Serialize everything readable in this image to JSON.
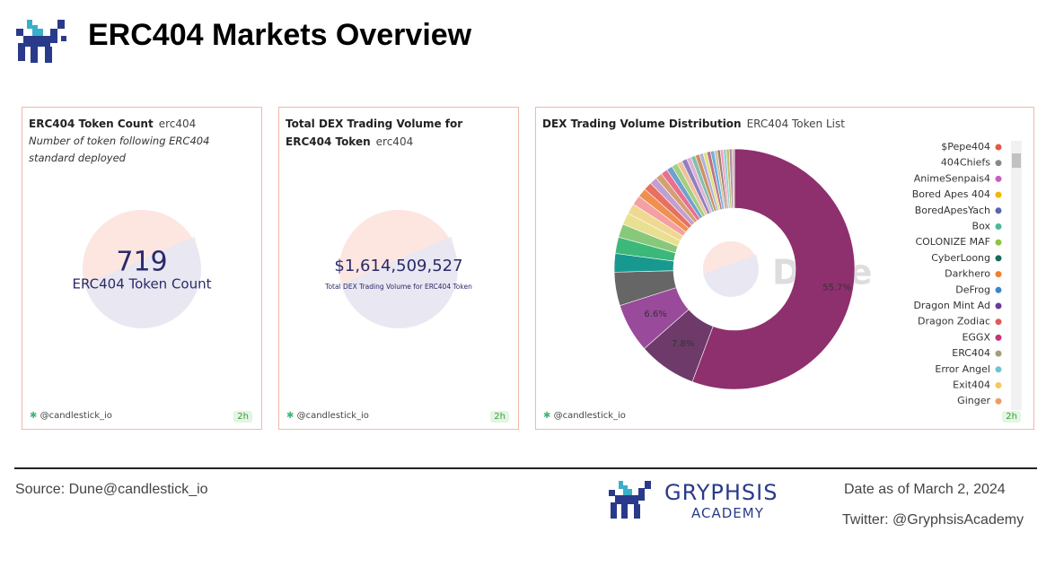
{
  "header": {
    "title": "ERC404 Markets Overview"
  },
  "panels": [
    {
      "title": "ERC404 Token Count",
      "tag": "erc404",
      "description": "Number of token following ERC404 standard deployed",
      "counter": "719",
      "counter_label": "ERC404 Token Count",
      "author": "@candlestick_io",
      "age": "2h"
    },
    {
      "title": "Total DEX Trading Volume for ERC404 Token",
      "tag": "erc404",
      "counter": "$1,614,509,527",
      "counter_label": "Total DEX Trading Volume for ERC404 Token",
      "author": "@candlestick_io",
      "age": "2h"
    },
    {
      "title": "DEX Trading Volume Distribution",
      "tag": "ERC404 Token List",
      "watermark": "Dune",
      "author": "@candlestick_io",
      "age": "2h"
    }
  ],
  "chart_data": {
    "type": "donut",
    "values": [
      55.7,
      7.8,
      6.6,
      4.5,
      2.5,
      2.2,
      1.8,
      1.6,
      1.4,
      1.3,
      1.2,
      1.1,
      1.0,
      0.9,
      0.9,
      0.8,
      0.8,
      0.7,
      0.7,
      0.6,
      0.6,
      0.6,
      0.5,
      0.5,
      0.5,
      0.5,
      0.4,
      0.4,
      0.4,
      0.4,
      0.4,
      0.4,
      0.3
    ],
    "value_labels": [
      "55.7%",
      "7.8%",
      "6.6%",
      null,
      null,
      null,
      null,
      null,
      null,
      null,
      null,
      null,
      null,
      null,
      null,
      null,
      null,
      null,
      null,
      null,
      null,
      null,
      null,
      null,
      null,
      null,
      null,
      null,
      null,
      null,
      null,
      null,
      null
    ],
    "colors": [
      "#8e2f6e",
      "#6e3a6a",
      "#9a4a9a",
      "#666666",
      "#17998f",
      "#3cb878",
      "#88c87a",
      "#e8e090",
      "#f0d890",
      "#f4a0a0",
      "#f09050",
      "#e87060",
      "#c0a0d0",
      "#d4a070",
      "#e87090",
      "#70a0d0",
      "#a0d080",
      "#f0c0a0",
      "#9080c0",
      "#e0b0d0",
      "#80c0b0",
      "#d09060",
      "#b0b0e0",
      "#e0e080",
      "#c07080",
      "#70b0e0",
      "#d0c0a0",
      "#a08070",
      "#f0a0c0",
      "#90d0d0",
      "#c0c070",
      "#b090a0",
      "#d0b0b0"
    ],
    "legend": [
      {
        "name": "$Pepe404",
        "color": "#e05a47"
      },
      {
        "name": "404Chiefs",
        "color": "#888888"
      },
      {
        "name": "AnimeSenpais4",
        "color": "#c85fbf"
      },
      {
        "name": "Bored Apes 404",
        "color": "#f2b705"
      },
      {
        "name": "BoredApesYach",
        "color": "#5566aa"
      },
      {
        "name": "Box",
        "color": "#4cb89b"
      },
      {
        "name": "COLONIZE MAF",
        "color": "#8cc63f"
      },
      {
        "name": "CyberLoong",
        "color": "#1a6b5a"
      },
      {
        "name": "Darkhero",
        "color": "#f08030"
      },
      {
        "name": "DeFrog",
        "color": "#3a86c8"
      },
      {
        "name": "Dragon Mint Ad",
        "color": "#6a3d9a"
      },
      {
        "name": "Dragon Zodiac",
        "color": "#e05a5a"
      },
      {
        "name": "EGGX",
        "color": "#c8337a"
      },
      {
        "name": "ERC404",
        "color": "#a0a080"
      },
      {
        "name": "Error Angel",
        "color": "#6cc5d0"
      },
      {
        "name": "Exit404",
        "color": "#f5c860"
      },
      {
        "name": "Ginger",
        "color": "#f09a6a"
      }
    ]
  },
  "footer": {
    "source": "Source: Dune@candlestick_io",
    "brand": "GRYPHSIS",
    "brand_sub": "ACADEMY",
    "date": "Date as of March 2, 2024",
    "twitter": "Twitter: @GryphsisAcademy"
  }
}
